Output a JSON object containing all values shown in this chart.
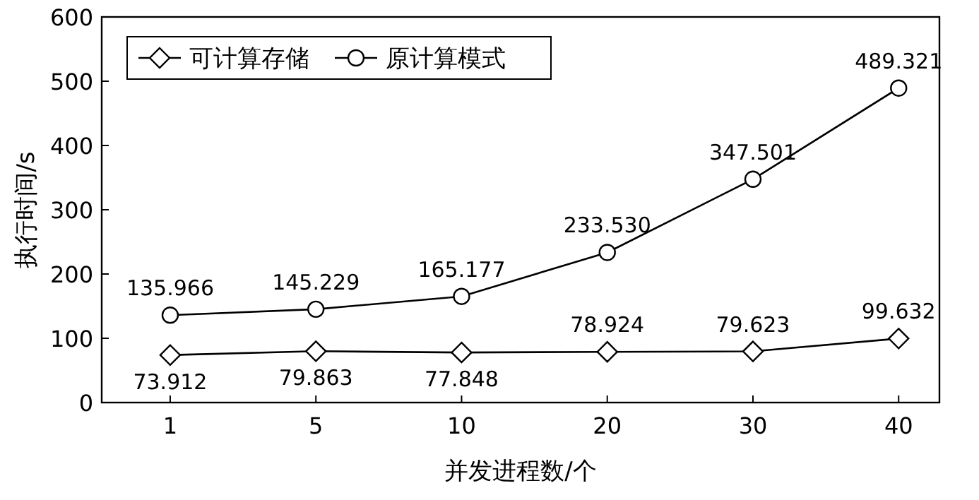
{
  "chart_data": {
    "type": "line",
    "xlabel": "并发进程数/个",
    "ylabel": "执行时间/s",
    "categories": [
      "1",
      "5",
      "10",
      "20",
      "30",
      "40"
    ],
    "series": [
      {
        "name": "可计算存储",
        "color": "#000000",
        "marker": "diamond",
        "values": [
          73.912,
          79.863,
          77.848,
          78.924,
          79.623,
          99.632
        ],
        "value_labels": [
          "73.912",
          "79.863",
          "77.848",
          "78.924",
          "79.623",
          "99.632"
        ]
      },
      {
        "name": "原计算模式",
        "color": "#000000",
        "marker": "circle",
        "values": [
          135.966,
          145.229,
          165.177,
          233.53,
          347.501,
          489.321
        ],
        "value_labels": [
          "135.966",
          "145.229",
          "165.177",
          "233.530",
          "347.501",
          "489.321"
        ]
      }
    ],
    "ylim": [
      0,
      600
    ],
    "yticks": [
      0,
      100,
      200,
      300,
      400,
      500,
      600
    ],
    "legend": "top left",
    "grid": false,
    "line_style": "solid"
  }
}
